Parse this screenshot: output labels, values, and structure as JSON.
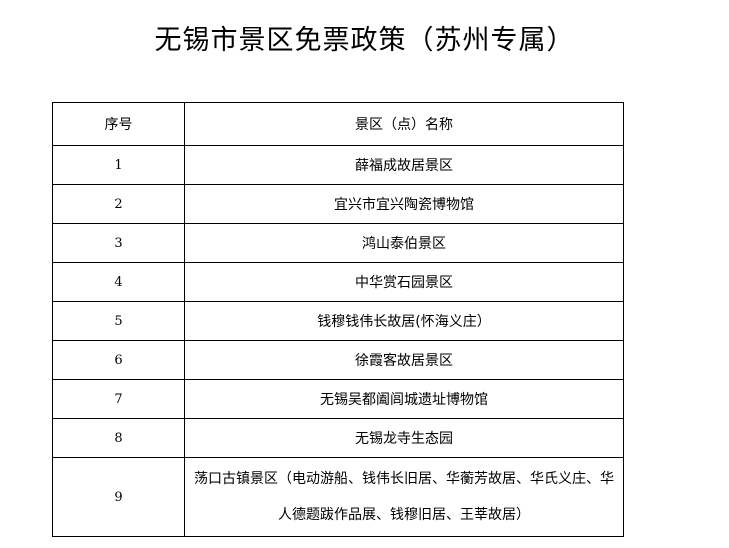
{
  "title": "无锡市景区免票政策（苏州专属）",
  "table": {
    "headers": [
      "序号",
      "景区（点）名称"
    ],
    "rows": [
      {
        "no": "1",
        "name": "薛福成故居景区"
      },
      {
        "no": "2",
        "name": "宜兴市宜兴陶瓷博物馆"
      },
      {
        "no": "3",
        "name": "鸿山泰伯景区"
      },
      {
        "no": "4",
        "name": "中华赏石园景区"
      },
      {
        "no": "5",
        "name": "钱穆钱伟长故居(怀海义庄）"
      },
      {
        "no": "6",
        "name": "徐霞客故居景区"
      },
      {
        "no": "7",
        "name": "无锡吴都阖闾城遗址博物馆"
      },
      {
        "no": "8",
        "name": "无锡龙寺生态园"
      },
      {
        "no": "9",
        "name": "荡口古镇景区（电动游船、钱伟长旧居、华蘅芳故居、华氏义庄、华人德题跋作品展、钱穆旧居、王莘故居）"
      }
    ]
  }
}
